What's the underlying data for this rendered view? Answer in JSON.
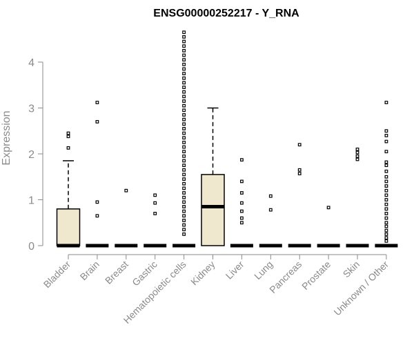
{
  "chart_data": {
    "type": "boxplot",
    "title": "ENSG00000252217 - Y_RNA",
    "ylabel": "Expression",
    "xlabel": "",
    "ylim": [
      0,
      4.7
    ],
    "yticks": [
      0,
      1,
      2,
      3,
      4
    ],
    "grid": false,
    "legend": "none",
    "box_fill": "#efe8cf",
    "stroke": "#000000",
    "categories": [
      "Bladder",
      "Brain",
      "Breast",
      "Gastric",
      "Hematopoietic cells",
      "Kidney",
      "Liver",
      "Lung",
      "Pancreas",
      "Prostate",
      "Skin",
      "Unknown / Other"
    ],
    "boxes": [
      {
        "q1": 0,
        "median": 0,
        "q3": 0.8,
        "whisker_low": 0,
        "whisker_high": 1.85,
        "outliers": [
          2.13,
          2.38,
          2.45
        ]
      },
      {
        "q1": 0,
        "median": 0,
        "q3": 0,
        "whisker_low": 0,
        "whisker_high": 0,
        "outliers": [
          0.65,
          0.95,
          2.7,
          3.12
        ]
      },
      {
        "q1": 0,
        "median": 0,
        "q3": 0,
        "whisker_low": 0,
        "whisker_high": 0,
        "outliers": [
          1.2
        ]
      },
      {
        "q1": 0,
        "median": 0,
        "q3": 0,
        "whisker_low": 0,
        "whisker_high": 0,
        "outliers": [
          0.7,
          0.93,
          1.1
        ]
      },
      {
        "q1": 0,
        "median": 0,
        "q3": 0,
        "whisker_low": 0,
        "whisker_high": 0,
        "outliers": [
          0.25,
          0.35,
          0.45,
          0.55,
          0.65,
          0.75,
          0.85,
          0.95,
          1.05,
          1.15,
          1.25,
          1.35,
          1.45,
          1.55,
          1.65,
          1.75,
          1.85,
          1.95,
          2.05,
          2.15,
          2.25,
          2.35,
          2.45,
          2.55,
          2.65,
          2.75,
          2.85,
          2.95,
          3.05,
          3.15,
          3.25,
          3.35,
          3.45,
          3.55,
          3.65,
          3.75,
          3.85,
          3.95,
          4.05,
          4.15,
          4.25,
          4.35,
          4.45,
          4.55,
          4.65
        ]
      },
      {
        "q1": 0,
        "median": 0.85,
        "q3": 1.55,
        "whisker_low": 0,
        "whisker_high": 3.0,
        "outliers": []
      },
      {
        "q1": 0,
        "median": 0,
        "q3": 0,
        "whisker_low": 0,
        "whisker_high": 0,
        "outliers": [
          0.5,
          0.6,
          0.75,
          0.93,
          1.15,
          1.4,
          1.87
        ]
      },
      {
        "q1": 0,
        "median": 0,
        "q3": 0,
        "whisker_low": 0,
        "whisker_high": 0,
        "outliers": [
          0.78,
          1.08
        ]
      },
      {
        "q1": 0,
        "median": 0,
        "q3": 0,
        "whisker_low": 0,
        "whisker_high": 0,
        "outliers": [
          1.57,
          1.65,
          2.2
        ]
      },
      {
        "q1": 0,
        "median": 0,
        "q3": 0,
        "whisker_low": 0,
        "whisker_high": 0,
        "outliers": [
          0.83
        ]
      },
      {
        "q1": 0,
        "median": 0,
        "q3": 0,
        "whisker_low": 0,
        "whisker_high": 0,
        "outliers": [
          1.88,
          1.95,
          2.03,
          2.1
        ]
      },
      {
        "q1": 0,
        "median": 0,
        "q3": 0,
        "whisker_low": 0,
        "whisker_high": 0,
        "outliers": [
          0.1,
          0.17,
          0.25,
          0.33,
          0.42,
          0.5,
          0.6,
          0.7,
          0.8,
          0.9,
          1.0,
          1.1,
          1.2,
          1.3,
          1.4,
          1.5,
          1.62,
          1.75,
          1.82,
          2.05,
          2.27,
          2.4,
          2.5,
          3.12
        ]
      }
    ]
  }
}
